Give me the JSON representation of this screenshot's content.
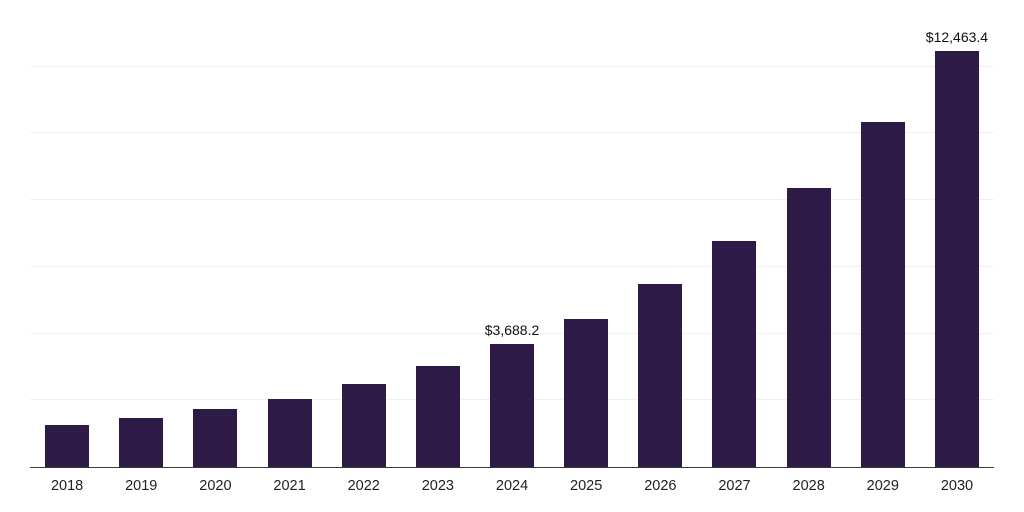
{
  "chart_data": {
    "type": "bar",
    "title": "",
    "xlabel": "",
    "ylabel": "",
    "categories": [
      "2018",
      "2019",
      "2020",
      "2021",
      "2022",
      "2023",
      "2024",
      "2025",
      "2026",
      "2027",
      "2028",
      "2029",
      "2030"
    ],
    "values": [
      1250,
      1480,
      1750,
      2050,
      2500,
      3020,
      3688.2,
      4440,
      5480,
      6790,
      8360,
      10330,
      12463.4
    ],
    "data_labels": {
      "2024": "$3,688.2",
      "2030": "$12,463.4"
    },
    "ylim": [
      0,
      13700
    ],
    "grid_interval": 2000,
    "grid": "horizontal",
    "y_axis_tick_labels": "hidden",
    "legend_position": "none",
    "bar_color": "#2E1A47",
    "gridline_color": "#F0F0F4",
    "axis_line_color": "#3A3A3A",
    "label_text_color": "#111111",
    "tick_text_color": "#222222"
  }
}
